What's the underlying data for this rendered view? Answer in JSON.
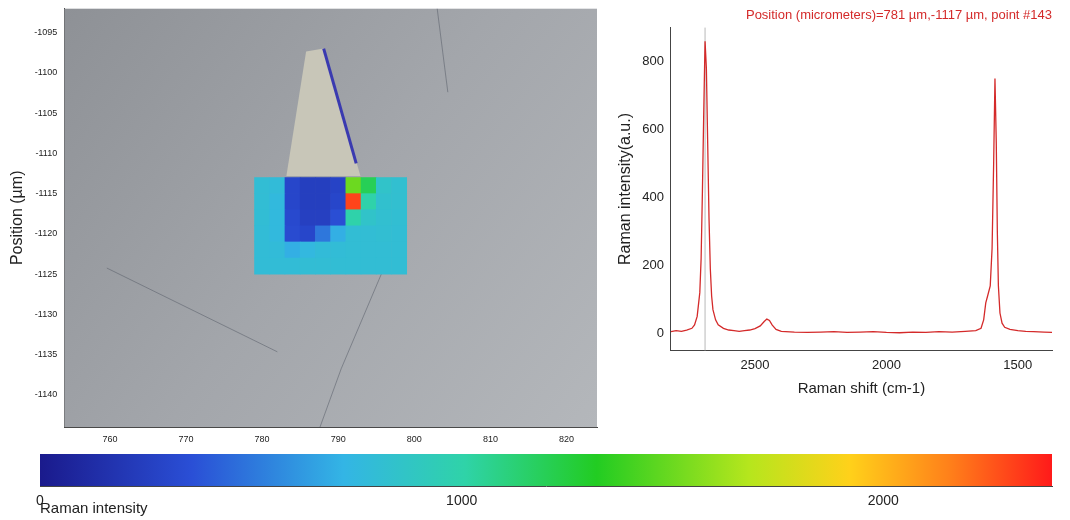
{
  "chart_data": [
    {
      "type": "heatmap",
      "ylabel": "Position (µm)",
      "xlim": [
        754,
        824
      ],
      "xticks": [
        760,
        770,
        780,
        790,
        800,
        810,
        820
      ],
      "ylim": [
        -1144,
        -1092
      ],
      "yticks": [
        -1095,
        -1100,
        -1105,
        -1110,
        -1115,
        -1120,
        -1125,
        -1130,
        -1135,
        -1140
      ],
      "grid": false,
      "cells": {
        "x": [
          780,
          782,
          784,
          786,
          788,
          790,
          792,
          794,
          796,
          798
        ],
        "y": [
          -1114,
          -1116,
          -1118,
          -1120,
          -1122,
          -1124
        ],
        "values": [
          [
            800,
            780,
            300,
            250,
            250,
            280,
            1500,
            1200,
            850,
            820
          ],
          [
            800,
            760,
            300,
            250,
            250,
            300,
            2300,
            1000,
            830,
            820
          ],
          [
            800,
            760,
            320,
            260,
            260,
            350,
            1000,
            850,
            820,
            810
          ],
          [
            790,
            760,
            330,
            300,
            500,
            700,
            800,
            800,
            810,
            800
          ],
          [
            790,
            780,
            700,
            750,
            780,
            790,
            800,
            800,
            800,
            800
          ],
          [
            790,
            790,
            790,
            800,
            800,
            800,
            800,
            800,
            800,
            800
          ]
        ]
      },
      "colorbar": {
        "label": "Raman intensity",
        "range": [
          0,
          2400
        ],
        "ticks": [
          0,
          1000,
          2000
        ]
      }
    },
    {
      "type": "line",
      "title": "Position (micrometers)=781 µm,-1117 µm, point #143",
      "xlabel": "Raman shift (cm-1)",
      "ylabel": "Raman intensity(a.u.)",
      "color": "#d42a2a",
      "grid": false,
      "xlim": [
        2820,
        1370
      ],
      "xticks": [
        2500,
        2000,
        1500
      ],
      "ylim": [
        -50,
        900
      ],
      "yticks": [
        0,
        200,
        400,
        600,
        800
      ],
      "cursor": 2690,
      "x": [
        2820,
        2800,
        2780,
        2760,
        2740,
        2730,
        2720,
        2710,
        2705,
        2700,
        2695,
        2690,
        2685,
        2680,
        2675,
        2670,
        2665,
        2660,
        2650,
        2640,
        2620,
        2600,
        2580,
        2560,
        2540,
        2520,
        2500,
        2480,
        2465,
        2455,
        2445,
        2435,
        2420,
        2400,
        2350,
        2300,
        2250,
        2200,
        2150,
        2100,
        2050,
        2000,
        1950,
        1900,
        1850,
        1800,
        1750,
        1700,
        1660,
        1640,
        1630,
        1622,
        1615,
        1605,
        1598,
        1592,
        1587,
        1582,
        1578,
        1574,
        1568,
        1560,
        1550,
        1530,
        1500,
        1470,
        1440,
        1400,
        1370
      ],
      "values": [
        5,
        8,
        6,
        10,
        15,
        25,
        50,
        120,
        220,
        420,
        650,
        860,
        780,
        560,
        340,
        190,
        110,
        70,
        40,
        25,
        15,
        10,
        8,
        6,
        8,
        10,
        14,
        22,
        35,
        42,
        38,
        25,
        12,
        6,
        4,
        3,
        4,
        5,
        3,
        4,
        5,
        3,
        2,
        4,
        3,
        5,
        4,
        6,
        8,
        15,
        40,
        90,
        110,
        140,
        250,
        500,
        750,
        560,
        300,
        140,
        60,
        30,
        18,
        12,
        8,
        6,
        5,
        4,
        3
      ]
    }
  ]
}
